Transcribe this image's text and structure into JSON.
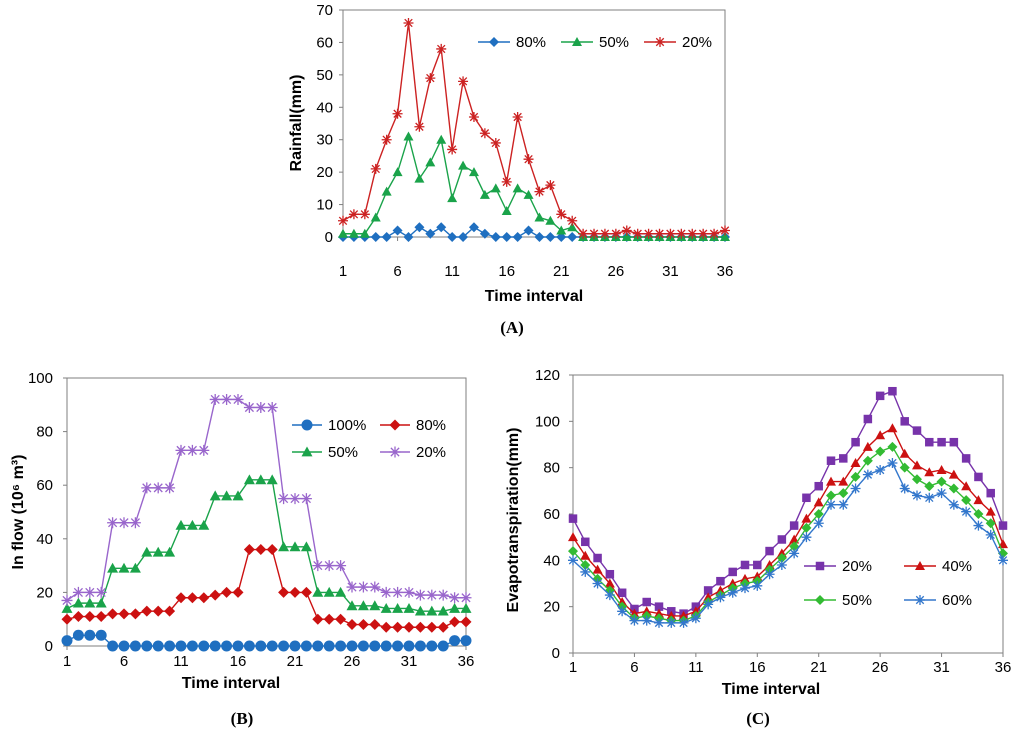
{
  "figure": {
    "captions": [
      "(A)",
      "(B)",
      "(C)"
    ]
  },
  "chart_data": [
    {
      "id": "A",
      "type": "line",
      "caption": "(A)",
      "xlabel": "Time interval",
      "ylabel": "Rainfall(mm)",
      "xlim": [
        1,
        36
      ],
      "ylim": [
        0,
        70
      ],
      "xticks": [
        1,
        6,
        11,
        16,
        21,
        26,
        31,
        36
      ],
      "yticks": [
        0,
        10,
        20,
        30,
        40,
        50,
        60,
        70
      ],
      "legend_position": "top-right",
      "series": [
        {
          "name": "80%",
          "color": "#1f6fc0",
          "marker": "diamond",
          "values": [
            0,
            0,
            0,
            0,
            0,
            2,
            0,
            3,
            1,
            3,
            0,
            0,
            3,
            1,
            0,
            0,
            0,
            2,
            0,
            0,
            0,
            0,
            0,
            0,
            0,
            0,
            0,
            0,
            0,
            0,
            0,
            0,
            0,
            0,
            0,
            0
          ]
        },
        {
          "name": "50%",
          "color": "#1aa34a",
          "marker": "triangle",
          "values": [
            1,
            1,
            1,
            6,
            14,
            20,
            31,
            18,
            23,
            30,
            12,
            22,
            20,
            13,
            15,
            8,
            15,
            13,
            6,
            5,
            2,
            3,
            0,
            0,
            0,
            0,
            0,
            0,
            0,
            0,
            0,
            0,
            0,
            0,
            0,
            0
          ]
        },
        {
          "name": "20%",
          "color": "#cc2222",
          "marker": "star",
          "values": [
            5,
            7,
            7,
            21,
            30,
            38,
            66,
            34,
            49,
            58,
            27,
            48,
            37,
            32,
            29,
            17,
            37,
            24,
            14,
            16,
            7,
            5,
            1,
            1,
            1,
            1,
            2,
            1,
            1,
            1,
            1,
            1,
            1,
            1,
            1,
            2
          ]
        }
      ]
    },
    {
      "id": "B",
      "type": "line",
      "caption": "(B)",
      "xlabel": "Time interval",
      "ylabel": "In flow (10⁶ m³)",
      "xlim": [
        1,
        36
      ],
      "ylim": [
        0,
        100
      ],
      "xticks": [
        1,
        6,
        11,
        16,
        21,
        26,
        31,
        36
      ],
      "yticks": [
        0,
        20,
        40,
        60,
        80,
        100
      ],
      "legend_position": "top-right",
      "series": [
        {
          "name": "100%",
          "color": "#1f6fc0",
          "marker": "circle",
          "values": [
            2,
            4,
            4,
            4,
            0,
            0,
            0,
            0,
            0,
            0,
            0,
            0,
            0,
            0,
            0,
            0,
            0,
            0,
            0,
            0,
            0,
            0,
            0,
            0,
            0,
            0,
            0,
            0,
            0,
            0,
            0,
            0,
            0,
            0,
            2,
            2
          ]
        },
        {
          "name": "80%",
          "color": "#cc1111",
          "marker": "diamond",
          "values": [
            10,
            11,
            11,
            11,
            12,
            12,
            12,
            13,
            13,
            13,
            18,
            18,
            18,
            19,
            20,
            20,
            36,
            36,
            36,
            20,
            20,
            20,
            10,
            10,
            10,
            8,
            8,
            8,
            7,
            7,
            7,
            7,
            7,
            7,
            9,
            9
          ]
        },
        {
          "name": "50%",
          "color": "#1aa34a",
          "marker": "triangle",
          "values": [
            14,
            16,
            16,
            16,
            29,
            29,
            29,
            35,
            35,
            35,
            45,
            45,
            45,
            56,
            56,
            56,
            62,
            62,
            62,
            37,
            37,
            37,
            20,
            20,
            20,
            15,
            15,
            15,
            14,
            14,
            14,
            13,
            13,
            13,
            14,
            14
          ]
        },
        {
          "name": "20%",
          "color": "#9966cc",
          "marker": "star",
          "values": [
            17,
            20,
            20,
            20,
            46,
            46,
            46,
            59,
            59,
            59,
            73,
            73,
            73,
            92,
            92,
            92,
            89,
            89,
            89,
            55,
            55,
            55,
            30,
            30,
            30,
            22,
            22,
            22,
            20,
            20,
            20,
            19,
            19,
            19,
            18,
            18
          ]
        }
      ]
    },
    {
      "id": "C",
      "type": "line",
      "caption": "(C)",
      "xlabel": "Time interval",
      "ylabel": "Evapotranspiration(mm)",
      "xlim": [
        1,
        36
      ],
      "ylim": [
        0,
        120
      ],
      "xticks": [
        1,
        6,
        11,
        16,
        21,
        26,
        31,
        36
      ],
      "yticks": [
        0,
        20,
        40,
        60,
        80,
        100,
        120
      ],
      "legend_position": "bottom-right",
      "series": [
        {
          "name": "20%",
          "color": "#7733aa",
          "marker": "square",
          "values": [
            58,
            48,
            41,
            34,
            26,
            19,
            22,
            20,
            18,
            17,
            20,
            27,
            31,
            35,
            38,
            38,
            44,
            49,
            55,
            67,
            72,
            83,
            84,
            91,
            101,
            111,
            113,
            100,
            96,
            91,
            91,
            91,
            84,
            76,
            69,
            55
          ]
        },
        {
          "name": "40%",
          "color": "#cc1111",
          "marker": "triangle",
          "values": [
            50,
            42,
            36,
            30,
            22,
            17,
            18,
            17,
            16,
            16,
            18,
            24,
            27,
            30,
            32,
            33,
            38,
            43,
            49,
            58,
            65,
            74,
            74,
            82,
            89,
            94,
            97,
            86,
            81,
            78,
            79,
            77,
            72,
            66,
            61,
            47
          ]
        },
        {
          "name": "50%",
          "color": "#33bb33",
          "marker": "diamond",
          "values": [
            44,
            38,
            32,
            27,
            20,
            15,
            16,
            15,
            14,
            14,
            16,
            22,
            25,
            28,
            30,
            31,
            36,
            41,
            46,
            54,
            60,
            68,
            69,
            76,
            83,
            87,
            89,
            80,
            75,
            72,
            74,
            71,
            66,
            60,
            56,
            43
          ]
        },
        {
          "name": "60%",
          "color": "#3377cc",
          "marker": "star",
          "values": [
            40,
            35,
            30,
            25,
            18,
            14,
            14,
            13,
            13,
            13,
            15,
            21,
            24,
            26,
            28,
            29,
            34,
            38,
            43,
            50,
            56,
            64,
            64,
            71,
            77,
            79,
            82,
            71,
            68,
            67,
            69,
            64,
            61,
            55,
            51,
            40
          ]
        }
      ]
    }
  ]
}
